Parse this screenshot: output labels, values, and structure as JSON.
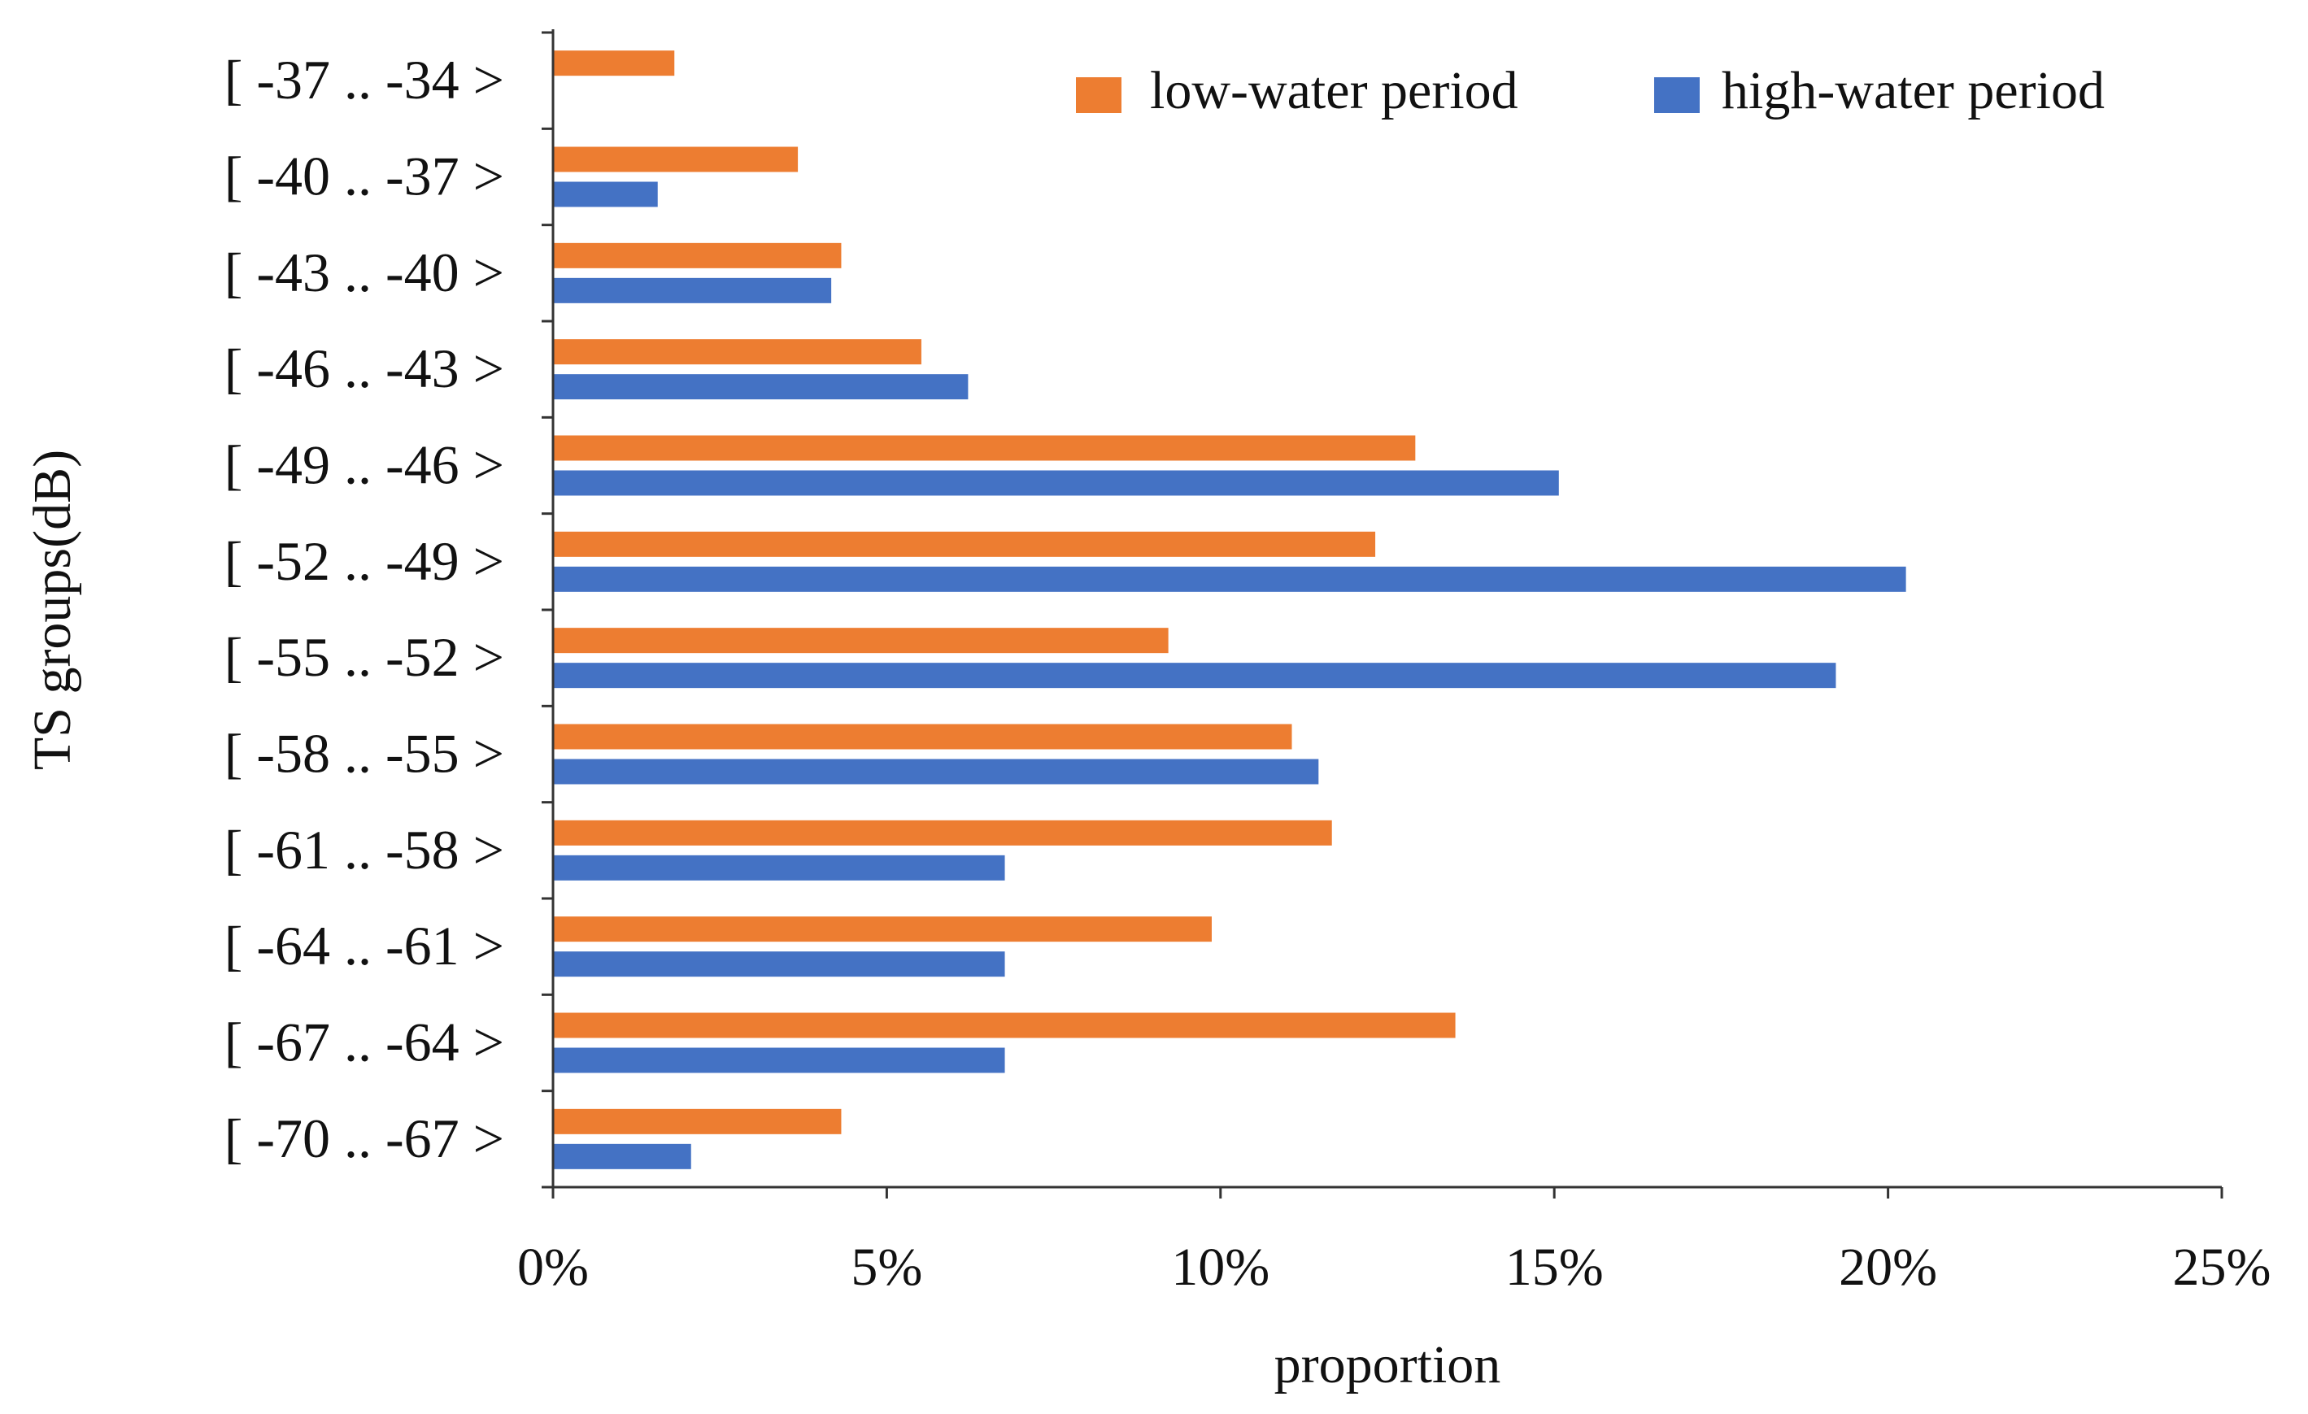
{
  "chart_data": {
    "type": "bar",
    "orientation": "horizontal",
    "xlabel": "proportion",
    "ylabel": "TS groups(dB)",
    "xlim": [
      0,
      25
    ],
    "xticks": [
      "0%",
      "5%",
      "10%",
      "15%",
      "20%",
      "25%"
    ],
    "grid": false,
    "legend_position": "top-right",
    "categories": [
      "[ -37 .. -34 >",
      "[ -40 .. -37 >",
      "[ -43 .. -40 >",
      "[ -46 .. -43 >",
      "[ -49 .. -46 >",
      "[ -52 .. -49 >",
      "[ -55 .. -52 >",
      "[ -58 .. -55 >",
      "[ -61 .. -58 >",
      "[ -64 .. -61 >",
      "[ -67 .. -64 >",
      "[ -70 .. -67 >"
    ],
    "series": [
      {
        "name": "low-water period",
        "color": "#ED7D31",
        "values": [
          1.8,
          3.65,
          4.3,
          5.5,
          12.9,
          12.3,
          9.2,
          11.05,
          11.65,
          9.85,
          13.5,
          4.3
        ]
      },
      {
        "name": "high-water period",
        "color": "#4472C4",
        "values": [
          0,
          1.55,
          4.15,
          6.2,
          15.05,
          20.25,
          19.2,
          11.45,
          6.75,
          6.75,
          6.75,
          2.05
        ]
      }
    ]
  }
}
